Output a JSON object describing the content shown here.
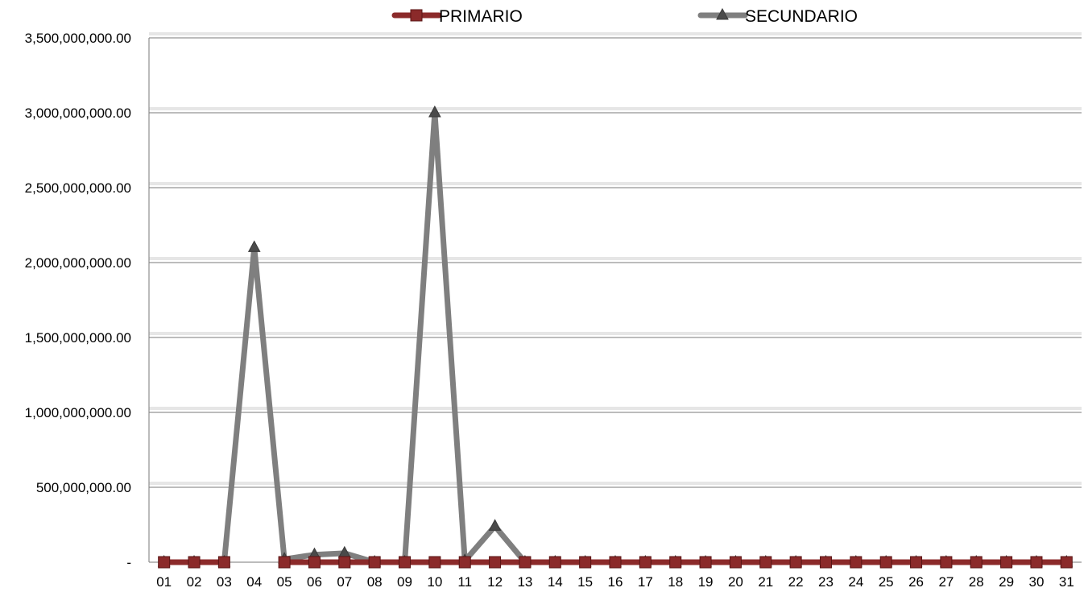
{
  "chart_data": {
    "type": "line",
    "title": "",
    "xlabel": "",
    "ylabel": "",
    "ylim": [
      0,
      3500000000
    ],
    "grid": true,
    "legend_position": "top",
    "y_ticks": [
      {
        "value": 0,
        "label": "-"
      },
      {
        "value": 500000000,
        "label": "500,000,000.00"
      },
      {
        "value": 1000000000,
        "label": "1,000,000,000.00"
      },
      {
        "value": 1500000000,
        "label": "1,500,000,000.00"
      },
      {
        "value": 2000000000,
        "label": "2,000,000,000.00"
      },
      {
        "value": 2500000000,
        "label": "2,500,000,000.00"
      },
      {
        "value": 3000000000,
        "label": "3,000,000,000.00"
      },
      {
        "value": 3500000000,
        "label": "3,500,000,000.00"
      }
    ],
    "categories": [
      "01",
      "02",
      "03",
      "04",
      "05",
      "06",
      "07",
      "08",
      "09",
      "10",
      "11",
      "12",
      "13",
      "14",
      "15",
      "16",
      "17",
      "18",
      "19",
      "20",
      "21",
      "22",
      "23",
      "24",
      "25",
      "26",
      "27",
      "28",
      "29",
      "30",
      "31"
    ],
    "series": [
      {
        "name": "PRIMARIO",
        "color": "#8b2a2a",
        "marker": "square",
        "values": [
          0,
          0,
          0,
          null,
          0,
          0,
          0,
          0,
          0,
          0,
          0,
          0,
          0,
          0,
          0,
          0,
          0,
          0,
          0,
          0,
          0,
          0,
          0,
          0,
          0,
          0,
          0,
          0,
          0,
          0,
          0
        ]
      },
      {
        "name": "SECUNDARIO",
        "color": "#7f7f7f",
        "marker": "triangle",
        "values": [
          0,
          0,
          0,
          2100000000,
          20000000,
          50000000,
          60000000,
          0,
          0,
          3000000000,
          10000000,
          240000000,
          0,
          0,
          0,
          0,
          0,
          0,
          0,
          0,
          0,
          0,
          0,
          0,
          0,
          0,
          0,
          0,
          0,
          0,
          0
        ]
      }
    ]
  }
}
